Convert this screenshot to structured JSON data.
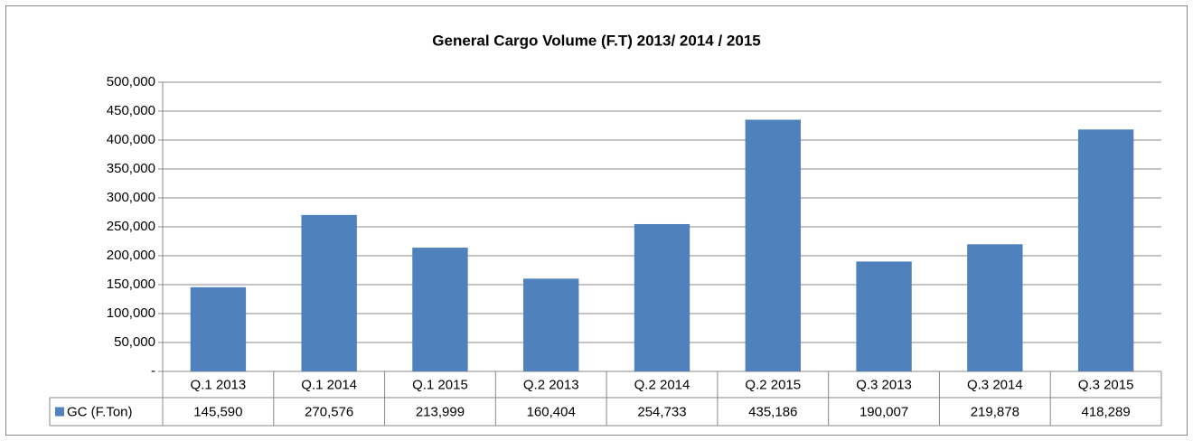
{
  "chart_data": {
    "type": "bar",
    "title": "General Cargo Volume (F.T) 2013/ 2014 / 2015",
    "categories": [
      "Q.1 2013",
      "Q.1 2014",
      "Q.1 2015",
      "Q.2 2013",
      "Q.2 2014",
      "Q.2 2015",
      "Q.3 2013",
      "Q.3 2014",
      "Q.3 2015"
    ],
    "series": [
      {
        "name": "GC (F.Ton)",
        "color": "#4f81bd",
        "values": [
          145590,
          270576,
          213999,
          160404,
          254733,
          435186,
          190007,
          219878,
          418289
        ],
        "value_labels": [
          "145,590",
          "270,576",
          "213,999",
          "160,404",
          "254,733",
          "435,186",
          "190,007",
          "219,878",
          "418,289"
        ]
      }
    ],
    "ylim": [
      0,
      500000
    ],
    "yticks": [
      {
        "value": 0,
        "label": "-"
      },
      {
        "value": 50000,
        "label": "50,000"
      },
      {
        "value": 100000,
        "label": "100,000"
      },
      {
        "value": 150000,
        "label": "150,000"
      },
      {
        "value": 200000,
        "label": "200,000"
      },
      {
        "value": 250000,
        "label": "250,000"
      },
      {
        "value": 300000,
        "label": "300,000"
      },
      {
        "value": 350000,
        "label": "350,000"
      },
      {
        "value": 400000,
        "label": "400,000"
      },
      {
        "value": 450000,
        "label": "450,000"
      },
      {
        "value": 500000,
        "label": "500,000"
      }
    ],
    "grid": true
  }
}
